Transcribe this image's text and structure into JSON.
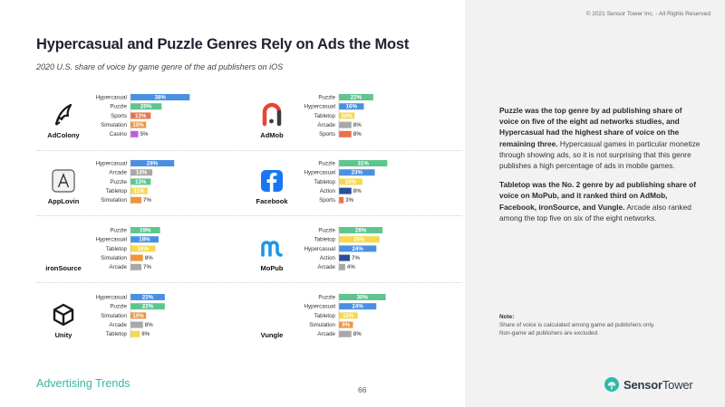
{
  "header": {
    "copyright": "© 2021 Sensor Tower Inc. - All Rights Reserved",
    "title": "Hypercasual and Puzzle Genres Rely on Ads the Most",
    "subtitle": "2020 U.S. share of voice by game genre of the ad publishers on iOS"
  },
  "colors": {
    "Hypercasual": "#4a90e2",
    "Puzzle": "#5ec58f",
    "Sports": "#e8734a",
    "Simulation": "#f0943c",
    "Casino": "#b660d9",
    "Tabletop": "#f5d94e",
    "Arcade": "#a8a8a8",
    "Action": "#2a4f9a"
  },
  "chart_data": [
    {
      "type": "bar",
      "network": "AdColony",
      "categories": [
        "Hypercasual",
        "Puzzle",
        "Sports",
        "Simulation",
        "Casino"
      ],
      "values": [
        38,
        20,
        13,
        10,
        5
      ],
      "labels": [
        "38%",
        "20%",
        "13%",
        "10%",
        "5%"
      ]
    },
    {
      "type": "bar",
      "network": "AdMob",
      "categories": [
        "Puzzle",
        "Hypercasual",
        "Tabletop",
        "Arcade",
        "Sports"
      ],
      "values": [
        22,
        16,
        10,
        8,
        8
      ],
      "labels": [
        "22%",
        "16%",
        "10%",
        "8%",
        "8%"
      ]
    },
    {
      "type": "bar",
      "network": "AppLovin",
      "categories": [
        "Hypercasual",
        "Arcade",
        "Puzzle",
        "Tabletop",
        "Simulation"
      ],
      "values": [
        28,
        14,
        13,
        11,
        7
      ],
      "labels": [
        "28%",
        "14%",
        "13%",
        "11%",
        "7%"
      ]
    },
    {
      "type": "bar",
      "network": "Facebook",
      "categories": [
        "Puzzle",
        "Hypercasual",
        "Tabletop",
        "Action",
        "Sports"
      ],
      "values": [
        31,
        23,
        15,
        8,
        3
      ],
      "labels": [
        "31%",
        "23%",
        "15%",
        "8%",
        "3%"
      ]
    },
    {
      "type": "bar",
      "network": "ironSource",
      "categories": [
        "Puzzle",
        "Hypercasual",
        "Tabletop",
        "Simulation",
        "Arcade"
      ],
      "values": [
        19,
        18,
        16,
        8,
        7
      ],
      "labels": [
        "19%",
        "18%",
        "16%",
        "8%",
        "7%"
      ]
    },
    {
      "type": "bar",
      "network": "MoPub",
      "categories": [
        "Puzzle",
        "Tabletop",
        "Hypercasual",
        "Action",
        "Arcade"
      ],
      "values": [
        28,
        26,
        24,
        7,
        4
      ],
      "labels": [
        "28%",
        "26%",
        "24%",
        "7%",
        "4%"
      ]
    },
    {
      "type": "bar",
      "network": "Unity",
      "categories": [
        "Hypercasual",
        "Puzzle",
        "Simulation",
        "Arcade",
        "Tabletop"
      ],
      "values": [
        22,
        22,
        10,
        8,
        6
      ],
      "labels": [
        "22%",
        "22%",
        "10%",
        "8%",
        "6%"
      ]
    },
    {
      "type": "bar",
      "network": "Vungle",
      "categories": [
        "Puzzle",
        "Hypercasual",
        "Tabletop",
        "Simulation",
        "Arcade"
      ],
      "values": [
        30,
        24,
        12,
        9,
        8
      ],
      "labels": [
        "30%",
        "24%",
        "12%",
        "9%",
        "8%"
      ]
    }
  ],
  "logos": [
    "adcolony-logo-icon",
    "admob-logo-icon",
    "applovin-logo-icon",
    "facebook-logo-icon",
    "ironsource-logo-icon",
    "mopub-logo-icon",
    "unity-logo-icon",
    "vungle-logo-icon"
  ],
  "insight": {
    "p1_bold": "Puzzle was the top genre by ad publishing share of voice on five of the eight ad networks studies, and Hypercasual had the highest share of voice on the remaining three.",
    "p1_rest": " Hypercasual games in particular monetize through showing ads, so it is not surprising that this genre publishes a high percentage of ads in mobile games.",
    "p2_bold": "Tabletop was the No. 2 genre by ad publishing share of voice on MoPub, and it ranked third on AdMob, Facebook, ironSource, and Vungle.",
    "p2_rest": " Arcade also ranked among the top five on six of the eight networks."
  },
  "note": {
    "title": "Note:",
    "line1": "Share of voice is calculated among game ad publishers only.",
    "line2": "Non-game ad publishers are excluded."
  },
  "footer": {
    "section": "Advertising Trends",
    "page": "66",
    "brand_bold": "Sensor",
    "brand_rest": "Tower"
  }
}
